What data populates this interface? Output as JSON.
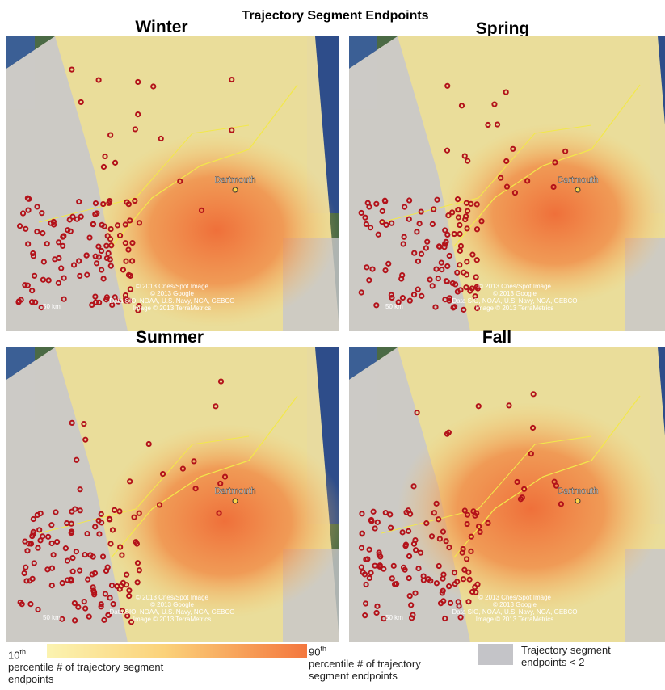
{
  "title": "Trajectory Segment Endpoints",
  "panels": [
    {
      "season": "Winter",
      "city": "Dartmouth",
      "scale": "50 km",
      "attribution": [
        "© 2013 Cnes/Spot Image",
        "© 2013 Google",
        "Data SIO, NOAA, U.S. Navy, NGA, GEBCO",
        "Image © 2013 TerraMetrics"
      ]
    },
    {
      "season": "Spring",
      "city": "Dartmouth",
      "scale": "50 km",
      "attribution": [
        "© 2013 Cnes/Spot Image",
        "© 2013 Google",
        "Data SIO, NOAA, U.S. Navy, NGA, GEBCO",
        "Image © 2013 TerraMetrics"
      ]
    },
    {
      "season": "Summer",
      "city": "Dartmouth",
      "scale": "50 km",
      "attribution": [
        "© 2013 Cnes/Spot Image",
        "© 2013 Google",
        "Data SIO, NOAA, U.S. Navy, NGA, GEBCO",
        "Image © 2013 TerraMetrics"
      ]
    },
    {
      "season": "Fall",
      "city": "Dartmouth",
      "scale": "50 km",
      "attribution": [
        "© 2013 Cnes/Spot Image",
        "© 2013 Google",
        "Data SIO, NOAA, U.S. Navy, NGA, GEBCO",
        "Image © 2013 TerraMetrics"
      ]
    }
  ],
  "legend": {
    "low": {
      "number": "10",
      "suffix": "th",
      "text": "percentile  # of trajectory segment endpoints"
    },
    "high": {
      "number": "90",
      "suffix": "th",
      "text": "percentile # of trajectory segment endpoints"
    },
    "gray": "Trajectory segment endpoints < 2"
  }
}
